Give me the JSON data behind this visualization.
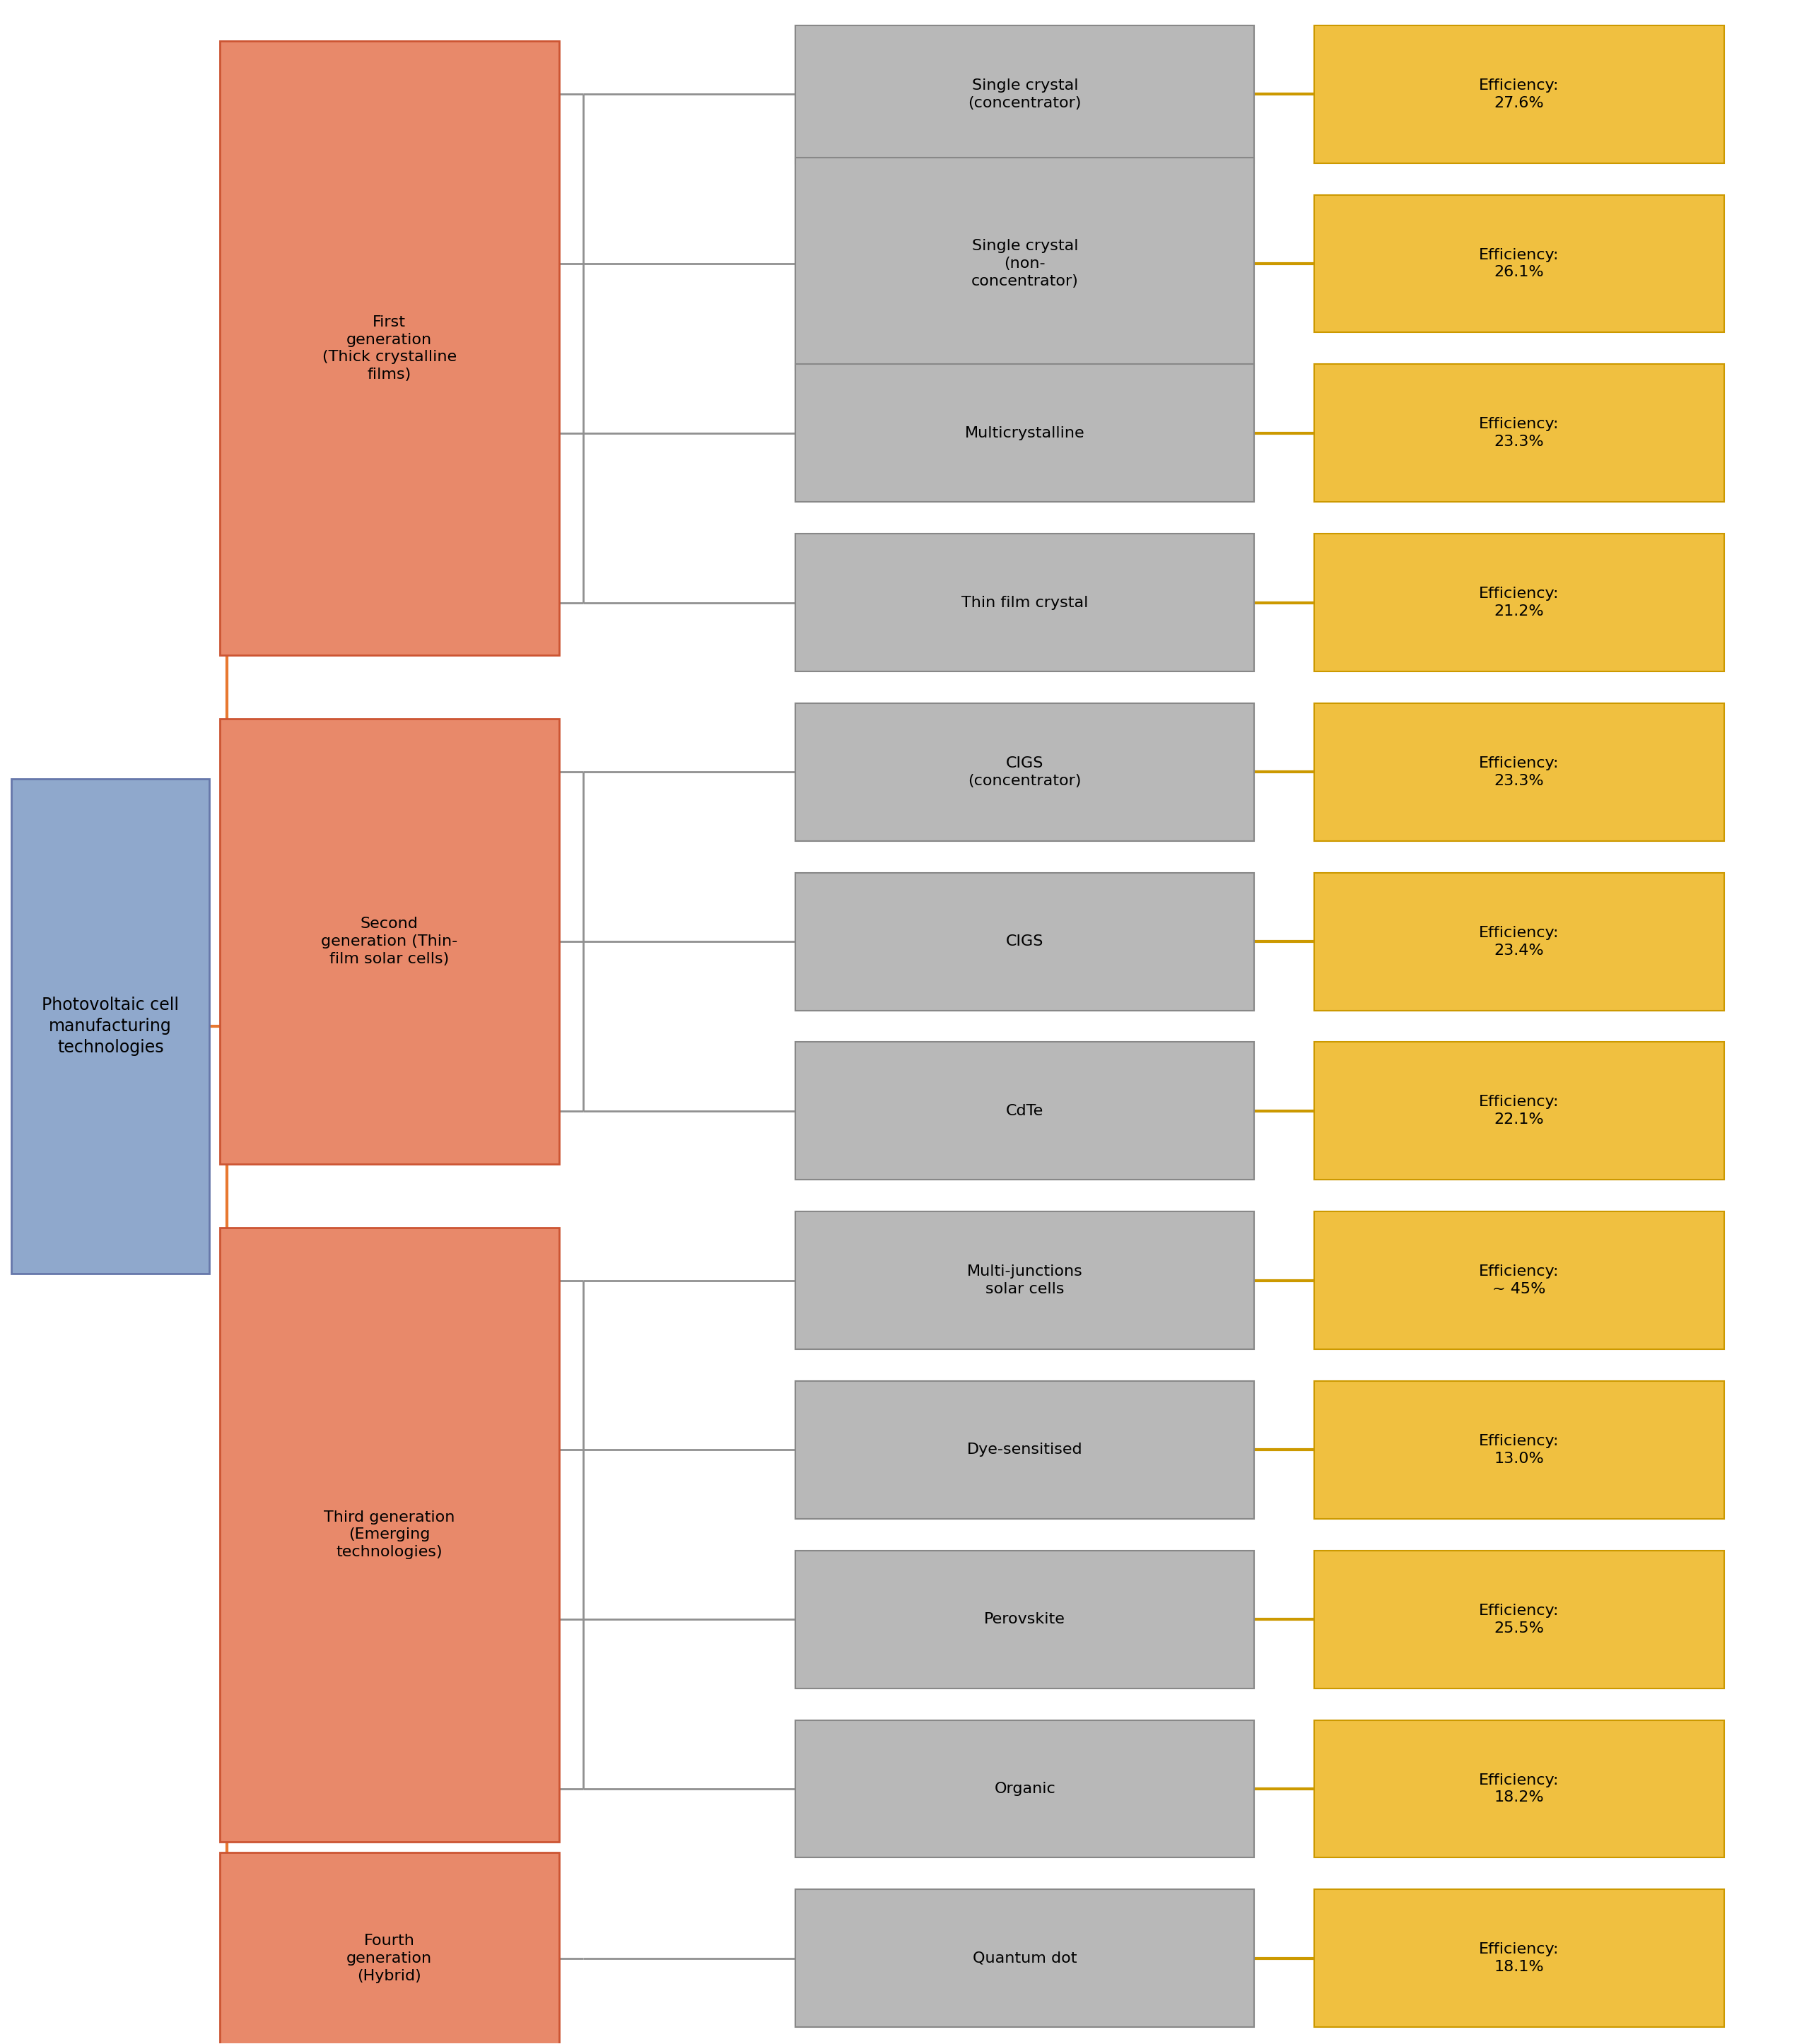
{
  "root": {
    "label": "Photovoltaic cell\nmanufacturing\ntechnologies",
    "color": "#8fa8cc",
    "edgecolor": "#6677aa"
  },
  "generations": [
    {
      "label": "First\ngeneration\n(Thick crystalline\nfilms)",
      "color": "#e8896a",
      "edgecolor": "#cc5533",
      "children": [
        {
          "label": "Single crystal\n(concentrator)",
          "efficiency": "Efficiency:\n27.6%"
        },
        {
          "label": "Single crystal\n(non-\nconcentrator)",
          "efficiency": "Efficiency:\n26.1%"
        },
        {
          "label": "Multicrystalline",
          "efficiency": "Efficiency:\n23.3%"
        },
        {
          "label": "Thin film crystal",
          "efficiency": "Efficiency:\n21.2%"
        }
      ]
    },
    {
      "label": "Second\ngeneration (Thin-\nfilm solar cells)",
      "color": "#e8896a",
      "edgecolor": "#cc5533",
      "children": [
        {
          "label": "CIGS\n(concentrator)",
          "efficiency": "Efficiency:\n23.3%"
        },
        {
          "label": "CIGS",
          "efficiency": "Efficiency:\n23.4%"
        },
        {
          "label": "CdTe",
          "efficiency": "Efficiency:\n22.1%"
        }
      ]
    },
    {
      "label": "Third generation\n(Emerging\ntechnologies)",
      "color": "#e8896a",
      "edgecolor": "#cc5533",
      "children": [
        {
          "label": "Multi-junctions\nsolar cells",
          "efficiency": "Efficiency:\n~ 45%"
        },
        {
          "label": "Dye-sensitised",
          "efficiency": "Efficiency:\n13.0%"
        },
        {
          "label": "Perovskite",
          "efficiency": "Efficiency:\n25.5%"
        },
        {
          "label": "Organic",
          "efficiency": "Efficiency:\n18.2%"
        }
      ]
    },
    {
      "label": "Fourth\ngeneration\n(Hybrid)",
      "color": "#e8896a",
      "edgecolor": "#cc5533",
      "children": [
        {
          "label": "Quantum dot",
          "efficiency": "Efficiency:\n18.1%"
        }
      ]
    }
  ],
  "leaf_color": "#b8b8b8",
  "leaf_edgecolor": "#888888",
  "efficiency_color": "#f0c040",
  "efficiency_edgecolor": "#cc9900",
  "connector_orange": "#e87830",
  "connector_gray": "#909090",
  "connector_gold": "#cc9900",
  "background_color": "#ffffff",
  "gen_leaf_counts": [
    4,
    3,
    4,
    1
  ]
}
